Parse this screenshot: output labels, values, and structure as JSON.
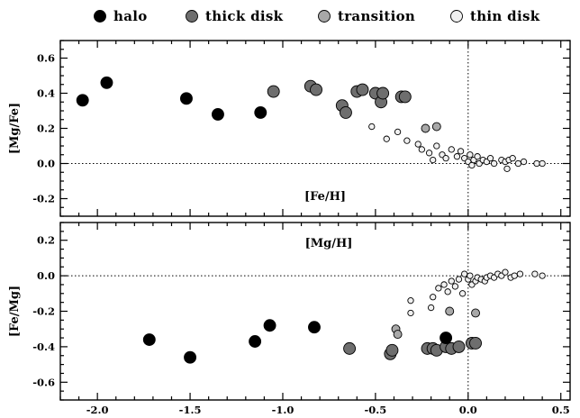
{
  "chart_data": {
    "type": "scatter",
    "x_range": [
      -2.2,
      0.55
    ],
    "x_ticks": [
      -2.0,
      -1.5,
      -1.0,
      -0.5,
      0.0,
      0.5
    ],
    "x_tick_labels": [
      "-2.0",
      "-1.5",
      "-1.0",
      "-0.5",
      "0.0",
      "0.5"
    ],
    "legend_position": "top",
    "legend": [
      {
        "name": "halo",
        "color": "#000000"
      },
      {
        "name": "thick disk",
        "color": "#6e6e6e"
      },
      {
        "name": "transition",
        "color": "#a8a8a8"
      },
      {
        "name": "thin disk",
        "color": "#e8e8e8"
      }
    ],
    "panels": [
      {
        "ylabel": "[Mg/Fe]",
        "xlabel": "[Fe/H]",
        "ylim": [
          -0.3,
          0.7
        ],
        "y_ticks": [
          -0.2,
          0.0,
          0.2,
          0.4,
          0.6
        ],
        "y_tick_labels": [
          "-0.2",
          "0.0",
          "0.2",
          "0.4",
          "0.6"
        ],
        "reference_lines": {
          "x": 0.0,
          "y": 0.0,
          "style": "dotted"
        },
        "series": [
          {
            "name": "halo",
            "points": [
              [
                -2.08,
                0.36
              ],
              [
                -1.95,
                0.46
              ],
              [
                -1.52,
                0.37
              ],
              [
                -1.35,
                0.28
              ],
              [
                -1.12,
                0.29
              ]
            ]
          },
          {
            "name": "thick disk",
            "points": [
              [
                -1.05,
                0.41
              ],
              [
                -0.85,
                0.44
              ],
              [
                -0.82,
                0.42
              ],
              [
                -0.68,
                0.33
              ],
              [
                -0.66,
                0.29
              ],
              [
                -0.6,
                0.41
              ],
              [
                -0.57,
                0.42
              ],
              [
                -0.5,
                0.4
              ],
              [
                -0.47,
                0.35
              ],
              [
                -0.46,
                0.4
              ],
              [
                -0.36,
                0.38
              ],
              [
                -0.34,
                0.38
              ]
            ]
          },
          {
            "name": "transition",
            "points": [
              [
                -0.23,
                0.2
              ],
              [
                -0.17,
                0.21
              ]
            ]
          },
          {
            "name": "thin disk",
            "points": [
              [
                -0.52,
                0.21
              ],
              [
                -0.44,
                0.14
              ],
              [
                -0.38,
                0.18
              ],
              [
                -0.33,
                0.13
              ],
              [
                -0.27,
                0.11
              ],
              [
                -0.25,
                0.08
              ],
              [
                -0.21,
                0.06
              ],
              [
                -0.19,
                0.02
              ],
              [
                -0.17,
                0.1
              ],
              [
                -0.14,
                0.05
              ],
              [
                -0.12,
                0.03
              ],
              [
                -0.09,
                0.08
              ],
              [
                -0.06,
                0.04
              ],
              [
                -0.04,
                0.07
              ],
              [
                -0.02,
                0.03
              ],
              [
                0.0,
                0.01
              ],
              [
                0.01,
                0.05
              ],
              [
                0.02,
                -0.01
              ],
              [
                0.03,
                0.02
              ],
              [
                0.05,
                0.04
              ],
              [
                0.06,
                0.0
              ],
              [
                0.08,
                0.02
              ],
              [
                0.1,
                0.01
              ],
              [
                0.12,
                0.03
              ],
              [
                0.14,
                0.0
              ],
              [
                0.18,
                0.02
              ],
              [
                0.2,
                0.01
              ],
              [
                0.21,
                -0.03
              ],
              [
                0.22,
                0.02
              ],
              [
                0.24,
                0.03
              ],
              [
                0.27,
                0.0
              ],
              [
                0.3,
                0.01
              ],
              [
                0.37,
                0.0
              ],
              [
                0.4,
                0.0
              ]
            ]
          }
        ]
      },
      {
        "ylabel": "[Fe/Mg]",
        "xlabel": "[Mg/H]",
        "ylim": [
          -0.7,
          0.3
        ],
        "y_ticks": [
          -0.6,
          -0.4,
          -0.2,
          0.0,
          0.2
        ],
        "y_tick_labels": [
          "-0.6",
          "-0.4",
          "-0.2",
          "0.0",
          "0.2"
        ],
        "reference_lines": {
          "x": 0.0,
          "y": 0.0,
          "style": "dotted"
        },
        "series": [
          {
            "name": "halo",
            "points": [
              [
                -1.72,
                -0.36
              ],
              [
                -1.5,
                -0.46
              ],
              [
                -1.15,
                -0.37
              ],
              [
                -1.07,
                -0.28
              ],
              [
                -0.83,
                -0.29
              ],
              [
                -0.12,
                -0.35
              ]
            ]
          },
          {
            "name": "thick disk",
            "points": [
              [
                -0.64,
                -0.41
              ],
              [
                -0.42,
                -0.44
              ],
              [
                -0.41,
                -0.42
              ],
              [
                -0.22,
                -0.41
              ],
              [
                -0.19,
                -0.41
              ],
              [
                -0.17,
                -0.42
              ],
              [
                -0.12,
                -0.4
              ],
              [
                -0.09,
                -0.41
              ],
              [
                -0.05,
                -0.4
              ],
              [
                0.02,
                -0.38
              ],
              [
                0.04,
                -0.38
              ]
            ]
          },
          {
            "name": "transition",
            "points": [
              [
                -0.39,
                -0.3
              ],
              [
                -0.38,
                -0.33
              ],
              [
                -0.1,
                -0.2
              ],
              [
                0.04,
                -0.21
              ]
            ]
          },
          {
            "name": "thin disk",
            "points": [
              [
                -0.31,
                -0.14
              ],
              [
                -0.31,
                -0.21
              ],
              [
                -0.2,
                -0.18
              ],
              [
                -0.19,
                -0.12
              ],
              [
                -0.16,
                -0.07
              ],
              [
                -0.13,
                -0.05
              ],
              [
                -0.11,
                -0.09
              ],
              [
                -0.09,
                -0.03
              ],
              [
                -0.07,
                -0.06
              ],
              [
                -0.05,
                -0.02
              ],
              [
                -0.03,
                -0.1
              ],
              [
                -0.02,
                0.01
              ],
              [
                0.0,
                -0.02
              ],
              [
                0.01,
                0.0
              ],
              [
                0.02,
                -0.05
              ],
              [
                0.04,
                -0.03
              ],
              [
                0.05,
                -0.01
              ],
              [
                0.07,
                -0.02
              ],
              [
                0.09,
                -0.03
              ],
              [
                0.1,
                -0.01
              ],
              [
                0.12,
                0.0
              ],
              [
                0.14,
                -0.01
              ],
              [
                0.16,
                0.01
              ],
              [
                0.18,
                0.0
              ],
              [
                0.2,
                0.02
              ],
              [
                0.23,
                -0.01
              ],
              [
                0.25,
                0.0
              ],
              [
                0.28,
                0.01
              ],
              [
                0.36,
                0.01
              ],
              [
                0.4,
                0.0
              ]
            ]
          }
        ]
      }
    ]
  },
  "styles": {
    "halo": {
      "fill": "#000000",
      "r": 6.5
    },
    "thick disk": {
      "fill": "#6e6e6e",
      "r": 6.5
    },
    "transition": {
      "fill": "#a8a8a8",
      "r": 4.5
    },
    "thin disk": {
      "fill": "#f0f0f0",
      "r": 3.2
    }
  }
}
